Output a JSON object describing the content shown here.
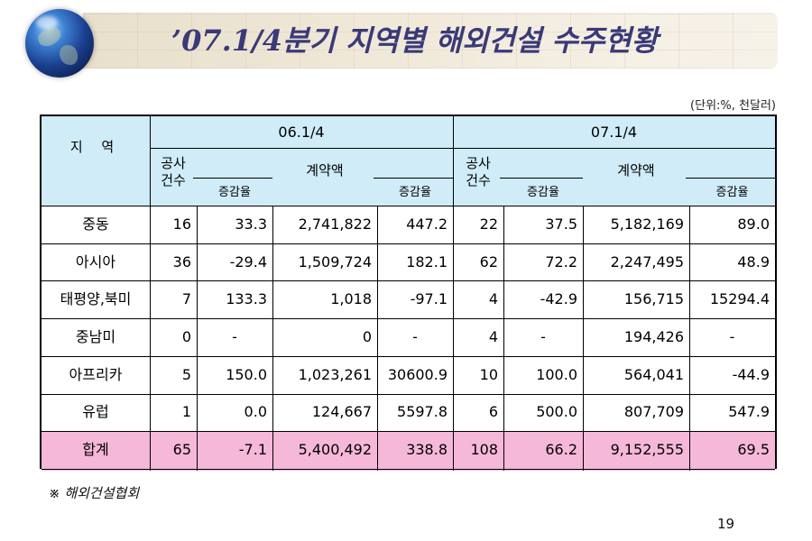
{
  "title": "’07.1/4분기 지역별 해외건설 수주현황",
  "unit": "(단위:%, 천달러)",
  "source": "※ 해외건설협회",
  "page_number": "19",
  "header": {
    "region": "지  역",
    "period_a": "06.1/4",
    "period_b": "07.1/4",
    "count": "공사\n건수",
    "change": "증감율",
    "amount": "계약액"
  },
  "rows": [
    {
      "region": "중동",
      "a_count": "16",
      "a_count_chg": "33.3",
      "a_amount": "2,741,822",
      "a_amount_chg": "447.2",
      "b_count": "22",
      "b_count_chg": "37.5",
      "b_amount": "5,182,169",
      "b_amount_chg": "89.0"
    },
    {
      "region": "아시아",
      "a_count": "36",
      "a_count_chg": "-29.4",
      "a_amount": "1,509,724",
      "a_amount_chg": "182.1",
      "b_count": "62",
      "b_count_chg": "72.2",
      "b_amount": "2,247,495",
      "b_amount_chg": "48.9"
    },
    {
      "region": "태평양,북미",
      "a_count": "7",
      "a_count_chg": "133.3",
      "a_amount": "1,018",
      "a_amount_chg": "-97.1",
      "b_count": "4",
      "b_count_chg": "-42.9",
      "b_amount": "156,715",
      "b_amount_chg": "15294.4"
    },
    {
      "region": "중남미",
      "a_count": "0",
      "a_count_chg": "-",
      "a_amount": "0",
      "a_amount_chg": "-",
      "b_count": "4",
      "b_count_chg": "-",
      "b_amount": "194,426",
      "b_amount_chg": "-"
    },
    {
      "region": "아프리카",
      "a_count": "5",
      "a_count_chg": "150.0",
      "a_amount": "1,023,261",
      "a_amount_chg": "30600.9",
      "b_count": "10",
      "b_count_chg": "100.0",
      "b_amount": "564,041",
      "b_amount_chg": "-44.9"
    },
    {
      "region": "유럽",
      "a_count": "1",
      "a_count_chg": "0.0",
      "a_amount": "124,667",
      "a_amount_chg": "5597.8",
      "b_count": "6",
      "b_count_chg": "500.0",
      "b_amount": "807,709",
      "b_amount_chg": "547.9"
    },
    {
      "region": "합계",
      "a_count": "65",
      "a_count_chg": "-7.1",
      "a_amount": "5,400,492",
      "a_amount_chg": "338.8",
      "b_count": "108",
      "b_count_chg": "66.2",
      "b_amount": "9,152,555",
      "b_amount_chg": "69.5"
    }
  ],
  "colors": {
    "header_bg": "#cfecf8",
    "total_row_bg": "#f5b8d8",
    "title_color": "#3a3a78"
  }
}
